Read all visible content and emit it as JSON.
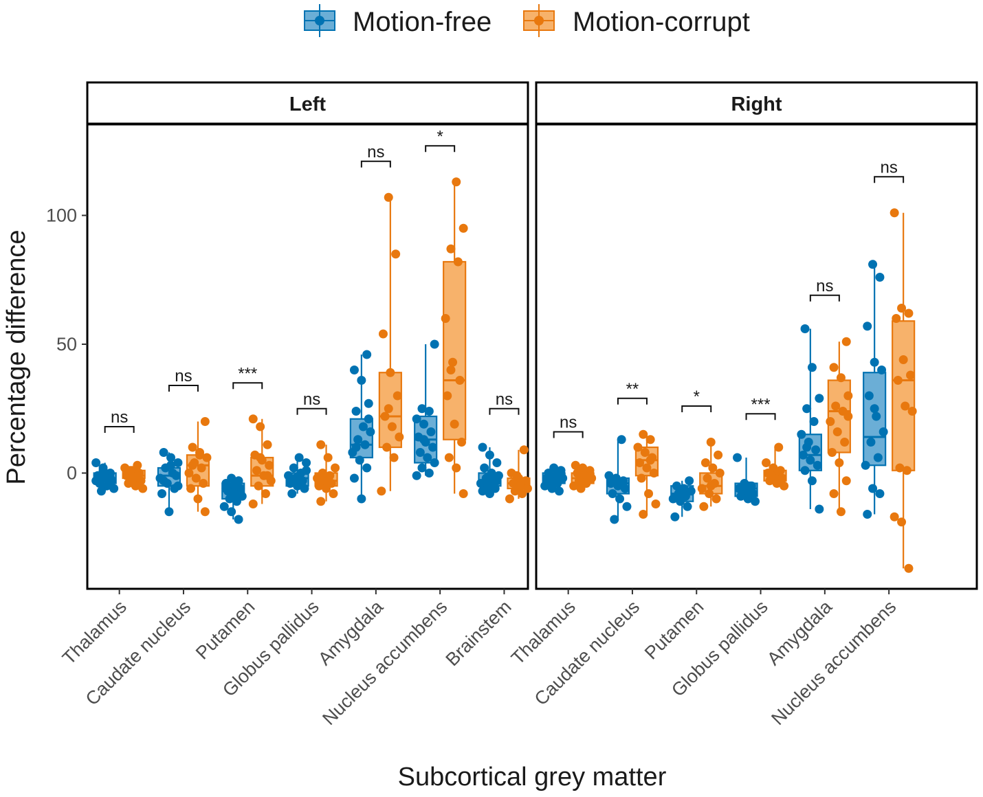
{
  "chart_data": {
    "type": "box",
    "title": "",
    "xlabel": "Subcortical grey matter",
    "ylabel": "Percentage difference",
    "ylim": [
      -45,
      135
    ],
    "yticks": [
      0,
      50,
      100
    ],
    "ytick_labels": [
      "0",
      "50",
      "100"
    ],
    "grid": false,
    "legend": {
      "position": "top",
      "entries": [
        {
          "name": "Motion-free",
          "color": "#0072B2",
          "fill": "#6BAED6"
        },
        {
          "name": "Motion-corrupt",
          "color": "#E8780E",
          "fill": "#F7B26B"
        }
      ]
    },
    "panels": [
      {
        "strip": "Left",
        "categories": [
          "Thalamus",
          "Caudate nucleus",
          "Putamen",
          "Globus pallidus",
          "Amygdala",
          "Nucleus accumbens",
          "Brainstem"
        ],
        "significance": [
          "ns",
          "ns",
          "***",
          "ns",
          "ns",
          "*",
          "ns"
        ],
        "bracket_y": [
          18,
          34,
          35,
          25,
          121,
          127,
          25
        ],
        "series": [
          {
            "name": "Motion-free",
            "boxes": [
              {
                "min": -7,
                "q1": -4,
                "median": -2,
                "q3": 0,
                "max": 4
              },
              {
                "min": -15,
                "q1": -5,
                "median": -1,
                "q3": 2,
                "max": 8
              },
              {
                "min": -18,
                "q1": -10,
                "median": -7,
                "q3": -4,
                "max": -2
              },
              {
                "min": -8,
                "q1": -5,
                "median": -2,
                "q3": 0,
                "max": 6
              },
              {
                "min": -10,
                "q1": 6,
                "median": 11,
                "q3": 21,
                "max": 46
              },
              {
                "min": -1,
                "q1": 4,
                "median": 13,
                "q3": 22,
                "max": 50
              },
              {
                "min": -8,
                "q1": -5,
                "median": -3,
                "q3": 0,
                "max": 10
              }
            ],
            "points": [
              [
                4,
                2,
                0,
                -1,
                -2,
                -3,
                -4,
                -5,
                -6,
                -7,
                -1,
                -3,
                1,
                -2
              ],
              [
                8,
                6,
                4,
                2,
                0,
                -2,
                -4,
                -6,
                -8,
                -15,
                -1,
                -3,
                3,
                -5
              ],
              [
                -2,
                -3,
                -4,
                -5,
                -6,
                -7,
                -8,
                -9,
                -10,
                -11,
                -13,
                -15,
                -18,
                -6
              ],
              [
                6,
                4,
                2,
                0,
                -1,
                -2,
                -3,
                -4,
                -5,
                -6,
                -8,
                -1,
                1,
                -3
              ],
              [
                46,
                40,
                36,
                27,
                24,
                18,
                16,
                13,
                11,
                8,
                5,
                2,
                -2,
                -10,
                21,
                10
              ],
              [
                50,
                25,
                24,
                21,
                19,
                16,
                14,
                12,
                10,
                8,
                6,
                4,
                2,
                0,
                -1,
                13
              ],
              [
                10,
                7,
                4,
                2,
                0,
                -1,
                -2,
                -3,
                -4,
                -5,
                -6,
                -7,
                -8,
                -3
              ]
            ]
          },
          {
            "name": "Motion-corrupt",
            "boxes": [
              {
                "min": -6,
                "q1": -2,
                "median": -1,
                "q3": 1,
                "max": 3
              },
              {
                "min": -15,
                "q1": -5,
                "median": 3,
                "q3": 7,
                "max": 20
              },
              {
                "min": -12,
                "q1": -5,
                "median": -1,
                "q3": 6,
                "max": 21
              },
              {
                "min": -11,
                "q1": -5,
                "median": -3,
                "q3": 0,
                "max": 11
              },
              {
                "min": -7,
                "q1": 10,
                "median": 22,
                "q3": 39,
                "max": 107
              },
              {
                "min": -8,
                "q1": 13,
                "median": 36,
                "q3": 82,
                "max": 113
              },
              {
                "min": -10,
                "q1": -6,
                "median": -4,
                "q3": -2,
                "max": 9
              }
            ],
            "points": [
              [
                3,
                2,
                1,
                0,
                -1,
                -2,
                -3,
                -4,
                -5,
                -6,
                1,
                -1
              ],
              [
                20,
                10,
                8,
                6,
                4,
                2,
                0,
                -2,
                -4,
                -6,
                -10,
                -15,
                3,
                7
              ],
              [
                21,
                18,
                11,
                7,
                5,
                3,
                1,
                -1,
                -3,
                -5,
                -8,
                -12,
                6,
                -1
              ],
              [
                11,
                6,
                2,
                0,
                -1,
                -2,
                -3,
                -4,
                -5,
                -6,
                -8,
                -11,
                -3
              ],
              [
                107,
                85,
                54,
                39,
                30,
                22,
                18,
                14,
                10,
                6,
                -7,
                25
              ],
              [
                113,
                95,
                87,
                82,
                60,
                43,
                36,
                30,
                19,
                12,
                6,
                2,
                -8,
                40
              ],
              [
                9,
                0,
                -2,
                -3,
                -4,
                -5,
                -6,
                -7,
                -8,
                -10,
                -1
              ]
            ]
          }
        ]
      },
      {
        "strip": "Right",
        "categories": [
          "Thalamus",
          "Caudate nucleus",
          "Putamen",
          "Globus pallidus",
          "Amygdala",
          "Nucleus accumbens"
        ],
        "significance": [
          "ns",
          "**",
          "*",
          "***",
          "ns",
          "ns"
        ],
        "bracket_y": [
          16,
          29,
          26,
          23,
          69,
          115
        ],
        "series": [
          {
            "name": "Motion-free",
            "boxes": [
              {
                "min": -7,
                "q1": -4,
                "median": -2,
                "q3": 0,
                "max": 2
              },
              {
                "min": -18,
                "q1": -8,
                "median": -4,
                "q3": -2,
                "max": 13
              },
              {
                "min": -17,
                "q1": -11,
                "median": -8,
                "q3": -5,
                "max": -3
              },
              {
                "min": -11,
                "q1": -9,
                "median": -6,
                "q3": -4,
                "max": 6
              },
              {
                "min": -14,
                "q1": 1,
                "median": 7,
                "q3": 15,
                "max": 56
              },
              {
                "min": -16,
                "q1": 3,
                "median": 14,
                "q3": 39,
                "max": 81
              }
            ],
            "points": [
              [
                2,
                1,
                0,
                -1,
                -2,
                -3,
                -4,
                -5,
                -6,
                -7,
                -2
              ],
              [
                13,
                -1,
                -2,
                -3,
                -4,
                -5,
                -6,
                -8,
                -10,
                -13,
                -18,
                -4
              ],
              [
                -3,
                -5,
                -6,
                -7,
                -8,
                -9,
                -10,
                -11,
                -13,
                -17,
                -8
              ],
              [
                6,
                -4,
                -5,
                -6,
                -7,
                -8,
                -9,
                -10,
                -11,
                -6,
                -5
              ],
              [
                56,
                41,
                29,
                25,
                20,
                15,
                12,
                9,
                7,
                5,
                3,
                1,
                -3,
                -14,
                10
              ],
              [
                81,
                76,
                57,
                43,
                40,
                30,
                22,
                16,
                12,
                6,
                3,
                -6,
                -8,
                -16,
                25
              ]
            ]
          },
          {
            "name": "Motion-corrupt",
            "boxes": [
              {
                "min": -6,
                "q1": -4,
                "median": -2,
                "q3": 0,
                "max": 3
              },
              {
                "min": -16,
                "q1": -1,
                "median": 5,
                "q3": 10,
                "max": 15
              },
              {
                "min": -13,
                "q1": -8,
                "median": -5,
                "q3": 0,
                "max": 12
              },
              {
                "min": -5,
                "q1": -3,
                "median": -1,
                "q3": 1,
                "max": 10
              },
              {
                "min": -15,
                "q1": 8,
                "median": 24,
                "q3": 36,
                "max": 51
              },
              {
                "min": -37,
                "q1": 1,
                "median": 36,
                "q3": 59,
                "max": 101
              }
            ],
            "points": [
              [
                3,
                2,
                1,
                0,
                -1,
                -2,
                -3,
                -4,
                -5,
                -6,
                -2
              ],
              [
                15,
                13,
                10,
                8,
                6,
                4,
                2,
                0,
                -2,
                -8,
                -12,
                -16,
                5
              ],
              [
                12,
                7,
                4,
                2,
                0,
                -2,
                -4,
                -6,
                -8,
                -10,
                -13,
                -5
              ],
              [
                10,
                4,
                2,
                1,
                0,
                -1,
                -2,
                -3,
                -4,
                -5,
                -1
              ],
              [
                51,
                41,
                37,
                30,
                26,
                24,
                20,
                16,
                12,
                8,
                4,
                -3,
                -8,
                -15,
                22
              ],
              [
                101,
                64,
                62,
                60,
                44,
                38,
                36,
                26,
                24,
                2,
                1,
                -17,
                -19,
                -37
              ]
            ]
          }
        ]
      }
    ]
  }
}
